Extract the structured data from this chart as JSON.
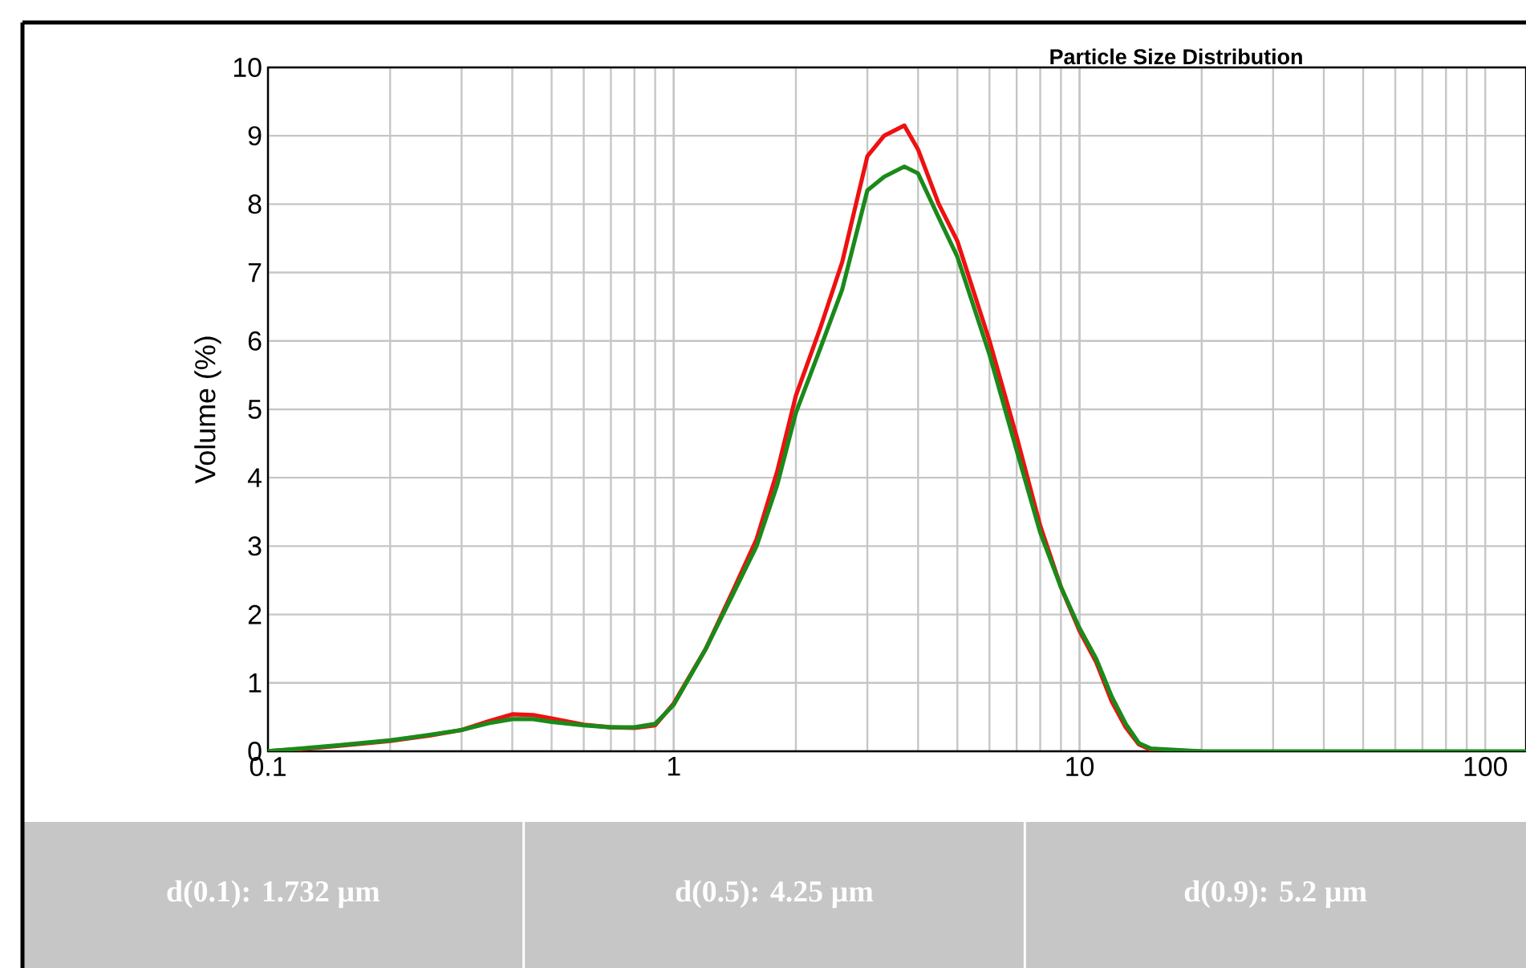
{
  "chart_data": {
    "type": "line",
    "title": "Particle Size Distribution",
    "ylabel": "Volume (%)",
    "x": [
      0.1,
      0.12,
      0.15,
      0.2,
      0.25,
      0.3,
      0.35,
      0.4,
      0.45,
      0.5,
      0.6,
      0.7,
      0.8,
      0.9,
      1.0,
      1.2,
      1.4,
      1.6,
      1.8,
      2.0,
      2.3,
      2.6,
      3.0,
      3.3,
      3.7,
      4.0,
      4.5,
      5.0,
      6.0,
      7.0,
      8.0,
      9.0,
      10,
      11,
      12,
      13,
      14,
      15,
      20,
      30,
      50,
      80,
      126
    ],
    "series": [
      {
        "color": "#ee1111",
        "values": [
          0,
          0.03,
          0.08,
          0.15,
          0.23,
          0.31,
          0.44,
          0.54,
          0.53,
          0.48,
          0.39,
          0.35,
          0.34,
          0.38,
          0.7,
          1.5,
          2.35,
          3.1,
          4.1,
          5.2,
          6.2,
          7.15,
          8.7,
          9.0,
          9.15,
          8.8,
          8.0,
          7.46,
          6.0,
          4.6,
          3.3,
          2.4,
          1.76,
          1.3,
          0.73,
          0.35,
          0.1,
          0.02,
          0,
          null,
          null,
          null,
          null
        ]
      },
      {
        "color": "#1a8a1a",
        "values": [
          0,
          0.04,
          0.09,
          0.16,
          0.24,
          0.31,
          0.41,
          0.47,
          0.47,
          0.43,
          0.38,
          0.35,
          0.35,
          0.4,
          0.68,
          1.5,
          2.3,
          3.0,
          3.9,
          4.95,
          5.9,
          6.75,
          8.2,
          8.4,
          8.55,
          8.45,
          7.8,
          7.23,
          5.8,
          4.4,
          3.2,
          2.4,
          1.8,
          1.35,
          0.8,
          0.4,
          0.12,
          0.04,
          0,
          0,
          0,
          0,
          0
        ]
      }
    ],
    "xlim": [
      0.1,
      126
    ],
    "ylim": [
      0,
      10
    ],
    "xticks": [
      0.1,
      1,
      10,
      100
    ],
    "yticks": [
      0,
      1,
      2,
      3,
      4,
      5,
      6,
      7,
      8,
      9,
      10
    ],
    "log": "x",
    "grid": true,
    "line_style": "solid",
    "annotations": [
      "d(0.1): 1.732 µm",
      "d(0.5): 4.25 µm",
      "d(0.9): 5.2 µm"
    ]
  }
}
